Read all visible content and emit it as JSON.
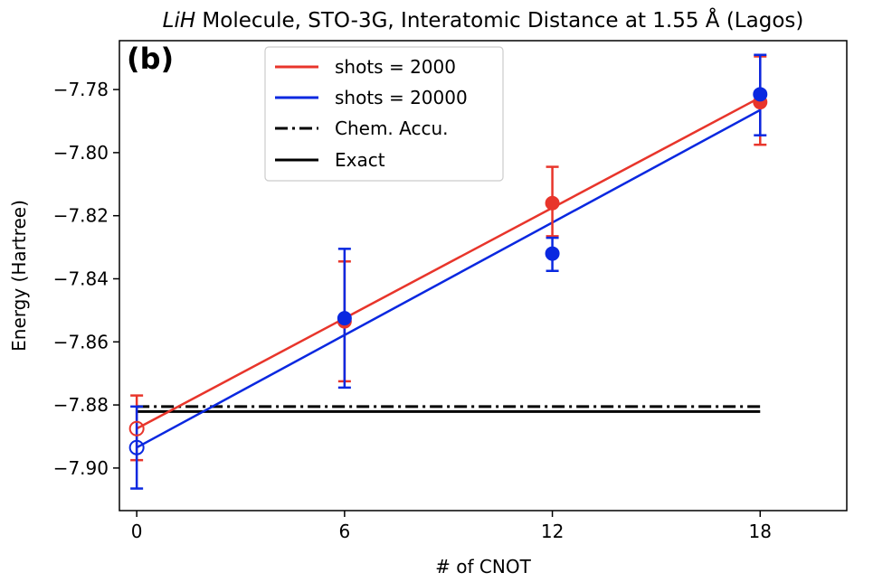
{
  "chart_data": {
    "type": "scatter",
    "title_italic": "LiH",
    "title_rest": " Molecule, STO-3G, Interatomic Distance at 1.55 Å (Lagos)",
    "panel_label": "(b)",
    "xlabel": "# of CNOT",
    "ylabel": "Energy (Hartree)",
    "xlim": [
      -0.5,
      20.5
    ],
    "ylim": [
      -7.9135,
      -7.7645
    ],
    "x_ticks": [
      0,
      6,
      12,
      18
    ],
    "x_tick_labels": [
      "0",
      "6",
      "12",
      "18"
    ],
    "y_ticks": [
      -7.78,
      -7.8,
      -7.82,
      -7.84,
      -7.86,
      -7.88,
      -7.9
    ],
    "y_tick_labels": [
      "−7.78",
      "−7.80",
      "−7.82",
      "−7.84",
      "−7.86",
      "−7.88",
      "−7.90"
    ],
    "series": [
      {
        "name": "shots = 2000",
        "color": "#e8352b",
        "x": [
          0,
          6,
          12,
          18
        ],
        "y": [
          -7.8875,
          -7.8535,
          -7.816,
          -7.784
        ],
        "yerr_low": [
          -7.8975,
          -7.8725,
          -7.8265,
          -7.7975
        ],
        "yerr_high": [
          -7.877,
          -7.8345,
          -7.8045,
          -7.7695
        ],
        "open_marker": [
          true,
          false,
          false,
          false
        ],
        "fit": {
          "x": [
            0,
            18
          ],
          "y": [
            -7.8875,
            -7.7825
          ]
        }
      },
      {
        "name": "shots = 20000",
        "color": "#0a28e0",
        "x": [
          0,
          6,
          12,
          18
        ],
        "y": [
          -7.8935,
          -7.8525,
          -7.832,
          -7.7815
        ],
        "yerr_low": [
          -7.9065,
          -7.8745,
          -7.8375,
          -7.7945
        ],
        "yerr_high": [
          -7.8805,
          -7.8305,
          -7.827,
          -7.769
        ],
        "open_marker": [
          true,
          false,
          false,
          false
        ],
        "fit": {
          "x": [
            0,
            18
          ],
          "y": [
            -7.8935,
            -7.7865
          ]
        }
      }
    ],
    "reference_lines": [
      {
        "name": "Chem. Accu.",
        "y": -7.8805,
        "x_range": [
          0,
          18
        ],
        "style": "dashdot",
        "color": "#000000"
      },
      {
        "name": "Exact",
        "y": -7.8821,
        "x_range": [
          0,
          18
        ],
        "style": "solid",
        "color": "#000000"
      }
    ],
    "legend": {
      "placement": "top-center",
      "entries": [
        "shots = 2000",
        "shots = 20000",
        "Chem. Accu.",
        "Exact"
      ]
    }
  }
}
